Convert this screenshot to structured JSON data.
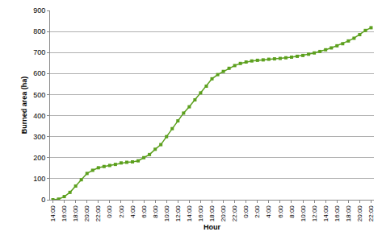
{
  "chart_data": {
    "type": "line",
    "x_label": "Hour",
    "y_label": "Burned area (ha)",
    "categories": [
      "14:00",
      null,
      "16:00",
      null,
      "18:00",
      null,
      "20:00",
      null,
      "22:00",
      null,
      "0:00",
      null,
      "2:00",
      null,
      "4:00",
      null,
      "6:00",
      null,
      "8:00",
      null,
      "10:00",
      null,
      "12:00",
      null,
      "14:00",
      null,
      "16:00",
      null,
      "18:00",
      null,
      "20:00",
      null,
      "22:00",
      null,
      "0:00",
      null,
      "2:00",
      null,
      "4:00",
      null,
      "6:00",
      null,
      "8:00",
      null,
      "10:00",
      null,
      "12:00",
      null,
      "14:00",
      null,
      "16:00",
      null,
      "18:00",
      null,
      "20:00",
      null,
      "22:00"
    ],
    "values": [
      0,
      3,
      15,
      35,
      65,
      95,
      125,
      140,
      152,
      158,
      163,
      168,
      175,
      178,
      180,
      185,
      200,
      215,
      240,
      262,
      300,
      338,
      375,
      412,
      442,
      475,
      508,
      540,
      575,
      595,
      610,
      625,
      638,
      648,
      655,
      660,
      663,
      665,
      668,
      670,
      672,
      675,
      678,
      682,
      686,
      692,
      698,
      705,
      713,
      722,
      732,
      742,
      755,
      768,
      785,
      805,
      818
    ],
    "color": "#5ca01e",
    "marker": "square",
    "ylim": [
      0,
      900
    ],
    "yticks": [
      0,
      100,
      200,
      300,
      400,
      500,
      600,
      700,
      800,
      900
    ],
    "grid": true
  }
}
